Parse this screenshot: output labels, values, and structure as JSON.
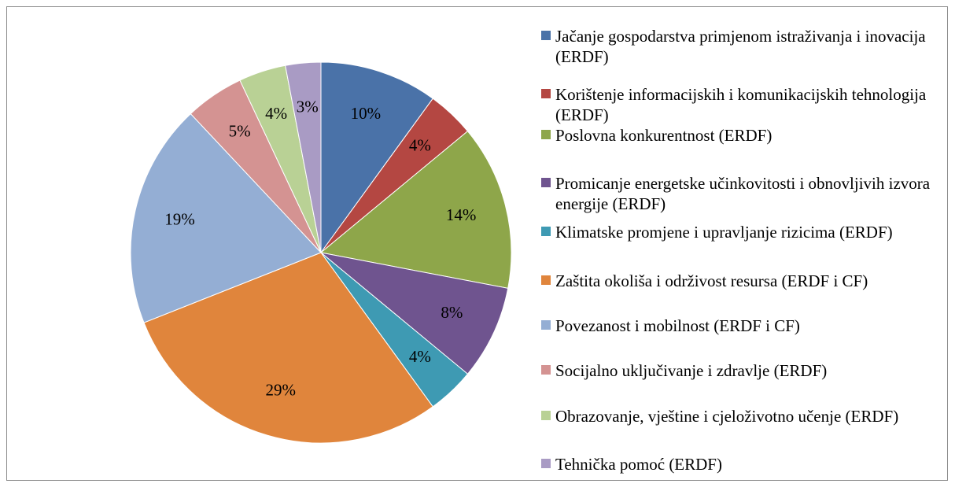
{
  "chart_data": {
    "type": "pie",
    "categories": [
      "Jačanje gospodarstva primjenom istraživanja i inovacija (ERDF)",
      "Korištenje informacijskih i komunikacijskih tehnologija (ERDF)",
      "Poslovna konkurentnost (ERDF)",
      "Promicanje energetske učinkovitosti i obnovljivih izvora energije (ERDF)",
      "Klimatske promjene i upravljanje rizicima (ERDF)",
      "Zaštita okoliša i održivost resursa (ERDF i CF)",
      "Povezanost i mobilnost (ERDF i CF)",
      "Socijalno uključivanje i zdravlje (ERDF)",
      "Obrazovanje, vještine i cjeloživotno učenje (ERDF)",
      "Tehnička pomoć (ERDF)"
    ],
    "values": [
      10,
      4,
      14,
      8,
      4,
      29,
      19,
      5,
      4,
      3
    ],
    "value_labels": [
      "10%",
      "4%",
      "14%",
      "8%",
      "4%",
      "29%",
      "19%",
      "5%",
      "4%",
      "3%"
    ],
    "colors": [
      "#4a72a8",
      "#b44742",
      "#8ea64a",
      "#6f548f",
      "#3e9ab3",
      "#e0853c",
      "#94aed4",
      "#d49392",
      "#b9d195",
      "#a99bc4"
    ],
    "legend": "right"
  }
}
